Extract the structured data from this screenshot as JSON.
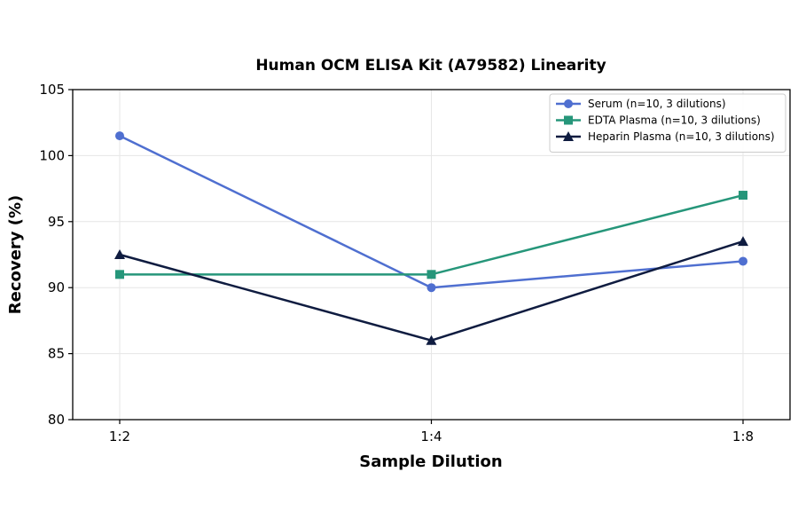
{
  "chart_data": {
    "type": "line",
    "title": "Human OCM ELISA Kit (A79582) Linearity",
    "xlabel": "Sample Dilution",
    "ylabel": "Recovery (%)",
    "categories": [
      "1:2",
      "1:4",
      "1:8"
    ],
    "ylim": [
      80,
      105
    ],
    "yticks": [
      80,
      85,
      90,
      95,
      100,
      105
    ],
    "grid": true,
    "legend_position": "top-right",
    "series": [
      {
        "name": "Serum (n=10, 3 dilutions)",
        "values": [
          101.5,
          90,
          92
        ],
        "color": "#4f6fd0",
        "marker": "circle"
      },
      {
        "name": "EDTA Plasma (n=10, 3 dilutions)",
        "values": [
          91,
          91,
          97
        ],
        "color": "#26967a",
        "marker": "square"
      },
      {
        "name": "Heparin Plasma (n=10, 3 dilutions)",
        "values": [
          92.5,
          86,
          93.5
        ],
        "color": "#0f1c40",
        "marker": "triangle"
      }
    ]
  }
}
